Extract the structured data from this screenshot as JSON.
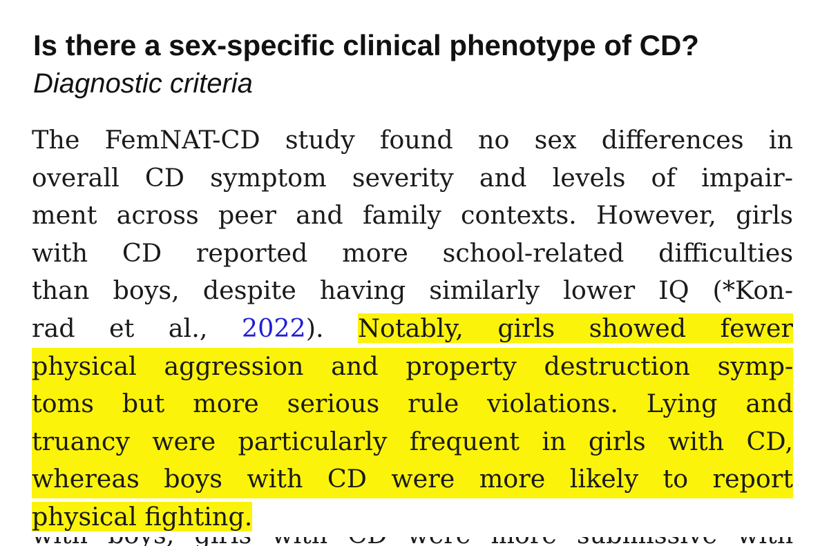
{
  "section": {
    "heading": "Is there a sex-specific clinical phenotype of CD?",
    "subheading": "Diagnostic criteria"
  },
  "paragraph": {
    "lines": [
      "The FemNAT-CD study found no sex differences in",
      "overall CD symptom severity and levels of impair-",
      "ment across peer and family contexts. However, girls",
      "with CD reported more school-related difficulties",
      "than boys, despite having similarly lower IQ (*Kon-"
    ],
    "line6_pre": "rad et al., ",
    "citation_year": "2022",
    "line6_post": "). ",
    "line6_highlight": "Notably, girls showed fewer",
    "highlighted_lines": [
      "physical aggression and property destruction symp-",
      "toms but more serious rule violations. Lying and",
      "truancy were particularly frequent in girls with CD,",
      "whereas boys with CD were more likely to report"
    ],
    "last_highlight": "physical fighting.",
    "cutoff_line": "with boys, girls with CD were more submissive with"
  },
  "colors": {
    "highlight": "#fbf30a",
    "link": "#1f1fd6",
    "text": "#1a1a1a"
  }
}
